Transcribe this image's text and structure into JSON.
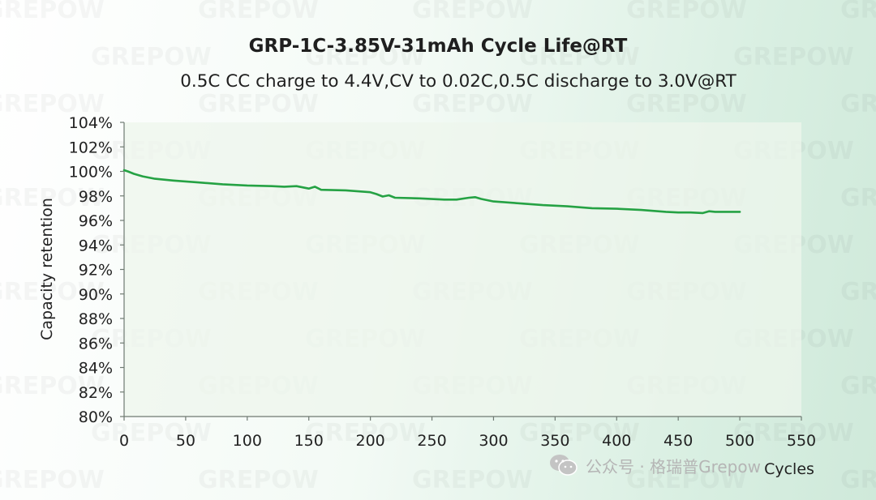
{
  "title": "GRP-1C-3.85V-31mAh Cycle Life@RT",
  "subtitle": "0.5C CC charge to 4.4V,CV to 0.02C,0.5C discharge to 3.0V@RT",
  "watermark_text": "公众号 · 格瑞普Grepow",
  "watermark_icon": "wechat-icon",
  "background_text": "GREPOW",
  "colors": {
    "line": "#25a244",
    "plot_bg": "#eef6ec",
    "axis": "#6f7a72",
    "text": "#222222"
  },
  "chart_data": {
    "type": "line",
    "xlabel": "Cycles",
    "ylabel": "Capacity retention",
    "xlim": [
      0,
      550
    ],
    "ylim": [
      80,
      104
    ],
    "x_ticks": [
      "0",
      "50",
      "100",
      "150",
      "200",
      "250",
      "300",
      "350",
      "400",
      "450",
      "500",
      "550"
    ],
    "y_ticks": [
      "80%",
      "82%",
      "84%",
      "86%",
      "88%",
      "90%",
      "92%",
      "94%",
      "96%",
      "98%",
      "100%",
      "102%",
      "104%"
    ],
    "grid": false,
    "legend": "none",
    "series": [
      {
        "x": [
          0,
          3,
          8,
          15,
          25,
          40,
          60,
          80,
          100,
          120,
          130,
          140,
          150,
          155,
          160,
          180,
          200,
          205,
          210,
          215,
          220,
          240,
          260,
          270,
          280,
          285,
          290,
          300,
          320,
          340,
          360,
          380,
          400,
          420,
          440,
          450,
          460,
          470,
          475,
          480,
          500
        ],
        "y": [
          100.1,
          100.0,
          99.8,
          99.6,
          99.4,
          99.25,
          99.1,
          98.95,
          98.85,
          98.8,
          98.75,
          98.8,
          98.6,
          98.75,
          98.5,
          98.45,
          98.3,
          98.15,
          97.95,
          98.05,
          97.85,
          97.8,
          97.7,
          97.7,
          97.85,
          97.9,
          97.75,
          97.55,
          97.4,
          97.25,
          97.15,
          97.0,
          96.95,
          96.85,
          96.7,
          96.65,
          96.65,
          96.6,
          96.75,
          96.7,
          96.7
        ]
      }
    ]
  }
}
